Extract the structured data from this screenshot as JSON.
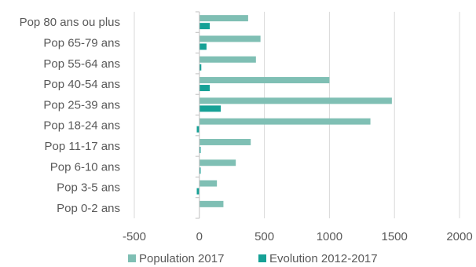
{
  "chart_data": {
    "type": "bar",
    "orientation": "horizontal",
    "categories": [
      "Pop 80 ans ou plus",
      "Pop 65-79 ans",
      "Pop 55-64 ans",
      "Pop 40-54 ans",
      "Pop 25-39 ans",
      "Pop 18-24 ans",
      "Pop 11-17 ans",
      "Pop 6-10 ans",
      "Pop 3-5 ans",
      "Pop 0-2 ans"
    ],
    "series": [
      {
        "name": "Population 2017",
        "color": "#7fbfb4",
        "values": [
          375,
          470,
          435,
          1000,
          1480,
          1315,
          395,
          280,
          135,
          185
        ]
      },
      {
        "name": "Evolution 2012-2017",
        "color": "#16a196",
        "values": [
          80,
          55,
          15,
          80,
          165,
          -20,
          10,
          10,
          -20,
          0
        ]
      }
    ],
    "xlim": [
      -500,
      2000
    ],
    "xticks": [
      -500,
      0,
      500,
      1000,
      1500,
      2000
    ],
    "xtick_labels": [
      "-500",
      "0",
      "500",
      "1000",
      "1500",
      "2000"
    ],
    "grid": "vertical",
    "legend": "bottom",
    "title": "",
    "xlabel": "",
    "ylabel": ""
  }
}
